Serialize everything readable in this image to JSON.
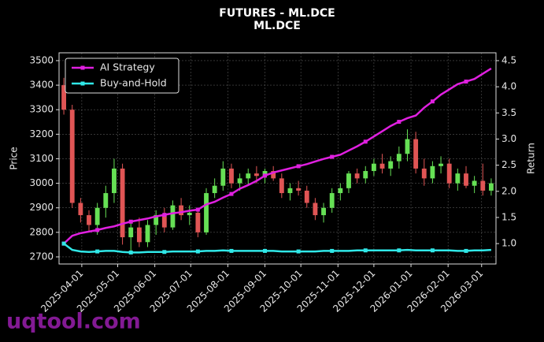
{
  "chart_data": {
    "type": "candlestick",
    "title": "FUTURES - ML.DCE",
    "subtitle": "ML.DCE",
    "ylabel": "Price",
    "y2label": "Return",
    "x": [
      "2025-03-17",
      "2025-03-24",
      "2025-03-31",
      "2025-04-07",
      "2025-04-14",
      "2025-04-21",
      "2025-04-28",
      "2025-05-05",
      "2025-05-12",
      "2025-05-19",
      "2025-05-26",
      "2025-06-02",
      "2025-06-09",
      "2025-06-16",
      "2025-06-23",
      "2025-06-30",
      "2025-07-07",
      "2025-07-14",
      "2025-07-21",
      "2025-07-28",
      "2025-08-04",
      "2025-08-11",
      "2025-08-18",
      "2025-08-25",
      "2025-09-01",
      "2025-09-08",
      "2025-09-15",
      "2025-09-22",
      "2025-09-29",
      "2025-10-06",
      "2025-10-13",
      "2025-10-20",
      "2025-10-27",
      "2025-11-03",
      "2025-11-10",
      "2025-11-17",
      "2025-11-24",
      "2025-12-01",
      "2025-12-08",
      "2025-12-15",
      "2025-12-22",
      "2025-12-29",
      "2026-01-05",
      "2026-01-12",
      "2026-01-19",
      "2026-01-26",
      "2026-02-02",
      "2026-02-09",
      "2026-02-16",
      "2026-02-23",
      "2026-03-02",
      "2026-03-09"
    ],
    "open": [
      3400,
      3300,
      2920,
      2870,
      2830,
      2900,
      2960,
      3060,
      2780,
      2820,
      2760,
      2830,
      2870,
      2820,
      2910,
      2870,
      2880,
      2800,
      2960,
      2990,
      3060,
      3000,
      3020,
      3040,
      3030,
      3050,
      3020,
      2960,
      2980,
      2970,
      2920,
      2870,
      2900,
      2960,
      2980,
      3040,
      3020,
      3050,
      3080,
      3060,
      3090,
      3120,
      3180,
      3060,
      3020,
      3070,
      3080,
      3000,
      3040,
      2990,
      3010,
      2970
    ],
    "high": [
      3430,
      3320,
      2940,
      2890,
      2920,
      2990,
      3100,
      3080,
      2840,
      2860,
      2850,
      2890,
      2900,
      2930,
      2940,
      2910,
      2890,
      2980,
      3020,
      3090,
      3080,
      3040,
      3060,
      3070,
      3060,
      3070,
      3040,
      3000,
      3010,
      2990,
      2940,
      2920,
      2980,
      3000,
      3050,
      3060,
      3070,
      3100,
      3120,
      3110,
      3150,
      3220,
      3210,
      3100,
      3090,
      3110,
      3100,
      3060,
      3070,
      3030,
      3080,
      3020
    ],
    "low": [
      3280,
      2900,
      2840,
      2800,
      2790,
      2860,
      2920,
      2750,
      2720,
      2740,
      2740,
      2790,
      2800,
      2810,
      2850,
      2830,
      2780,
      2790,
      2940,
      2970,
      2980,
      2970,
      2990,
      3000,
      3000,
      3010,
      2940,
      2930,
      2950,
      2900,
      2850,
      2840,
      2880,
      2930,
      2960,
      3000,
      3000,
      3030,
      3040,
      3030,
      3060,
      3090,
      3040,
      2990,
      3000,
      3040,
      2980,
      2970,
      2980,
      2960,
      2950,
      2950
    ],
    "close": [
      3300,
      2920,
      2870,
      2830,
      2900,
      2960,
      3060,
      2780,
      2820,
      2760,
      2830,
      2870,
      2820,
      2910,
      2870,
      2880,
      2800,
      2960,
      2990,
      3060,
      3000,
      3020,
      3040,
      3030,
      3050,
      3020,
      2960,
      2980,
      2970,
      2920,
      2870,
      2900,
      2960,
      2980,
      3040,
      3020,
      3050,
      3080,
      3060,
      3090,
      3120,
      3180,
      3060,
      3020,
      3070,
      3080,
      3000,
      3040,
      2990,
      3010,
      2970,
      3000
    ],
    "up_color": "#66e055",
    "down_color": "#e05555",
    "series": [
      {
        "name": "AI Strategy",
        "color": "#e020e0",
        "axis": "y2",
        "values": [
          1.0,
          1.15,
          1.2,
          1.23,
          1.26,
          1.3,
          1.33,
          1.38,
          1.42,
          1.45,
          1.48,
          1.52,
          1.55,
          1.58,
          1.6,
          1.63,
          1.65,
          1.75,
          1.8,
          1.88,
          1.95,
          2.05,
          2.12,
          2.2,
          2.3,
          2.36,
          2.4,
          2.44,
          2.48,
          2.52,
          2.57,
          2.62,
          2.66,
          2.7,
          2.78,
          2.86,
          2.95,
          3.05,
          3.15,
          3.25,
          3.33,
          3.4,
          3.45,
          3.6,
          3.72,
          3.85,
          3.95,
          4.05,
          4.1,
          4.15,
          4.25,
          4.35
        ]
      },
      {
        "name": "Buy-and-Hold",
        "color": "#30e8e8",
        "axis": "y2",
        "values": [
          1.0,
          0.88,
          0.85,
          0.84,
          0.85,
          0.86,
          0.86,
          0.84,
          0.83,
          0.83,
          0.84,
          0.84,
          0.84,
          0.85,
          0.85,
          0.85,
          0.85,
          0.86,
          0.86,
          0.87,
          0.86,
          0.86,
          0.86,
          0.86,
          0.86,
          0.86,
          0.85,
          0.85,
          0.85,
          0.85,
          0.85,
          0.86,
          0.86,
          0.86,
          0.86,
          0.87,
          0.87,
          0.87,
          0.87,
          0.87,
          0.87,
          0.88,
          0.87,
          0.87,
          0.87,
          0.87,
          0.87,
          0.86,
          0.86,
          0.87,
          0.87,
          0.88
        ]
      }
    ],
    "xlim": [
      "2025-03-13",
      "2026-03-13"
    ],
    "xticks": [
      "2025-04-01",
      "2025-05-01",
      "2025-06-01",
      "2025-07-01",
      "2025-08-01",
      "2025-09-01",
      "2025-10-01",
      "2025-11-01",
      "2025-12-01",
      "2026-01-01",
      "2026-02-01",
      "2026-03-01"
    ],
    "ylim": [
      2671,
      3532
    ],
    "yticks": [
      2700,
      2800,
      2900,
      3000,
      3100,
      3200,
      3300,
      3400,
      3500
    ],
    "y2lim": [
      0.61,
      4.65
    ],
    "y2ticks": [
      {
        "value": 1,
        "label": "1.0"
      },
      1.5,
      {
        "value": 2,
        "label": "2.0"
      },
      2.5,
      {
        "value": 3,
        "label": "3.0"
      },
      3.5,
      {
        "value": 4,
        "label": "4.0"
      },
      4.5
    ],
    "grid": true,
    "legend": "upper left",
    "watermark": "uqtool.com"
  }
}
